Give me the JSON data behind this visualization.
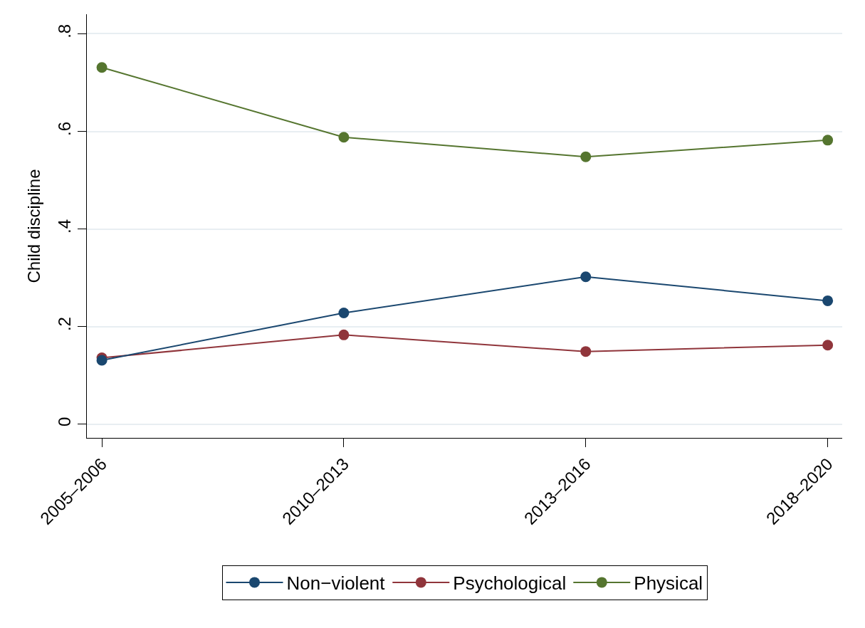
{
  "chart_data": {
    "type": "line",
    "ylabel": "Child discipline",
    "categories": [
      "2005–2006",
      "2010–2013",
      "2013–2016",
      "2018–2020"
    ],
    "series": [
      {
        "name": "Non−violent",
        "color": "#1a476f",
        "values": [
          0.131,
          0.228,
          0.302,
          0.253
        ]
      },
      {
        "name": "Psychological",
        "color": "#90353b",
        "values": [
          0.136,
          0.183,
          0.149,
          0.162
        ]
      },
      {
        "name": "Physical",
        "color": "#55752f",
        "values": [
          0.731,
          0.588,
          0.548,
          0.582
        ]
      }
    ],
    "ylim": [
      -0.028,
      0.84
    ],
    "yticks": [
      {
        "value": 0,
        "label": "0"
      },
      {
        "value": 0.2,
        "label": ".2"
      },
      {
        "value": 0.4,
        "label": ".4"
      },
      {
        "value": 0.6,
        "label": ".6"
      },
      {
        "value": 0.8,
        "label": ".8"
      }
    ],
    "grid": "y",
    "legend": "bottom",
    "marker": "circle",
    "line_style": "solid"
  }
}
